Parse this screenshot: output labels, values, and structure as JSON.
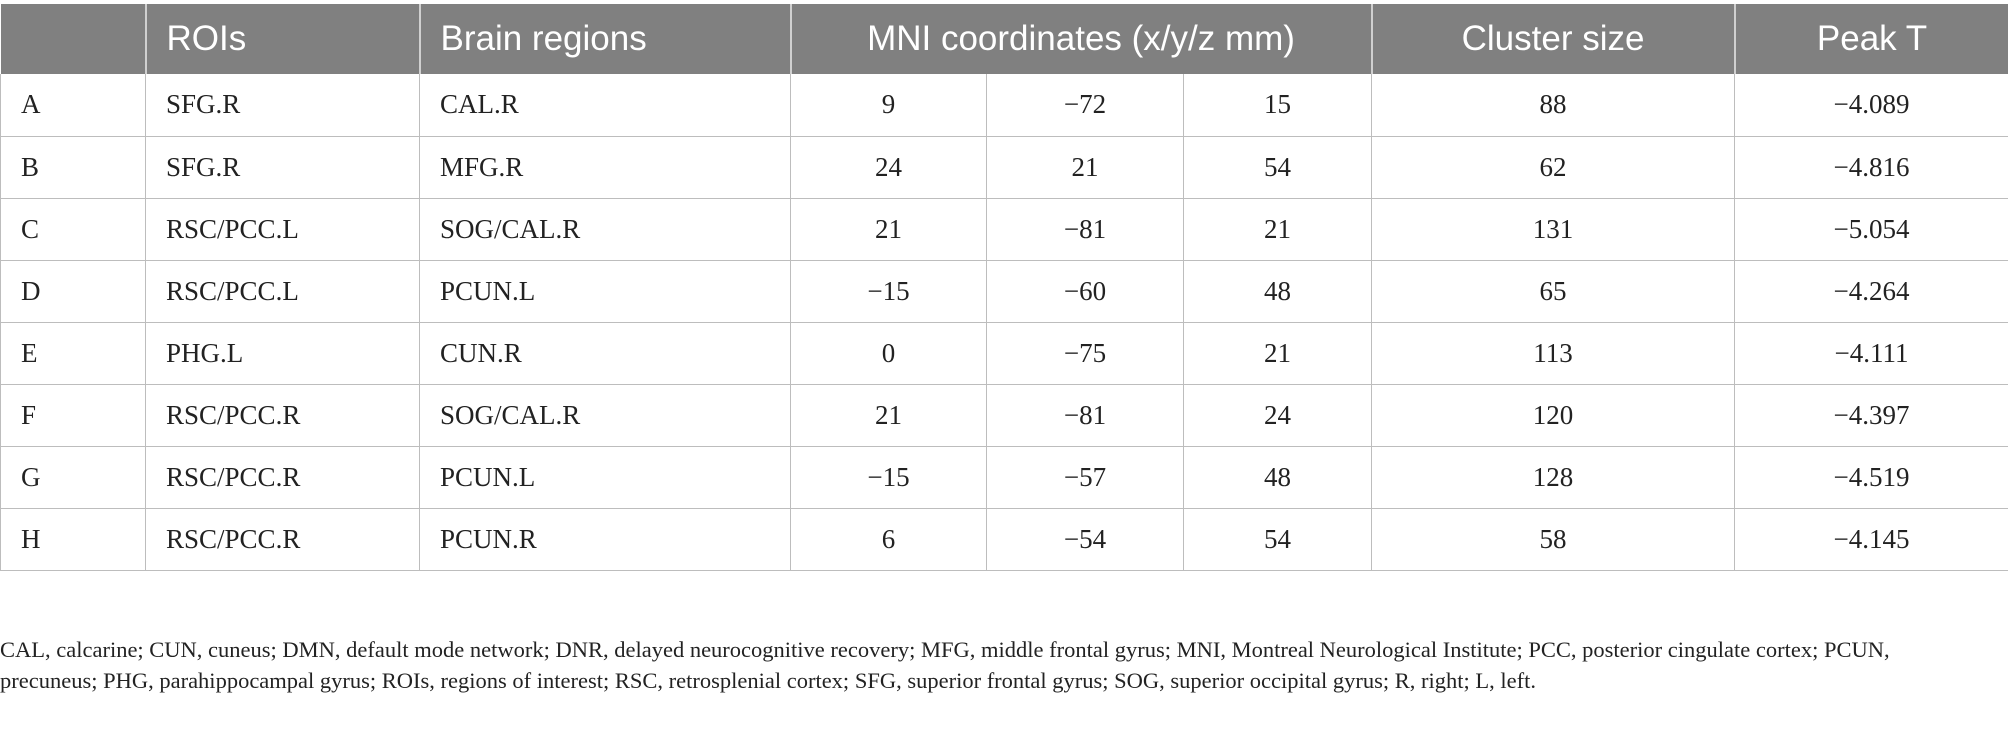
{
  "table": {
    "headers": {
      "label": "",
      "rois": "ROIs",
      "brain_regions": "Brain regions",
      "mni": "MNI coordinates (x/y/z mm)",
      "cluster_size": "Cluster size",
      "peak_t": "Peak T"
    },
    "rows": [
      {
        "label": "A",
        "roi": "SFG.R",
        "region": "CAL.R",
        "x": "9",
        "y": "−72",
        "z": "15",
        "size": "88",
        "peak": "−4.089"
      },
      {
        "label": "B",
        "roi": "SFG.R",
        "region": "MFG.R",
        "x": "24",
        "y": "21",
        "z": "54",
        "size": "62",
        "peak": "−4.816"
      },
      {
        "label": "C",
        "roi": "RSC/PCC.L",
        "region": "SOG/CAL.R",
        "x": "21",
        "y": "−81",
        "z": "21",
        "size": "131",
        "peak": "−5.054"
      },
      {
        "label": "D",
        "roi": "RSC/PCC.L",
        "region": "PCUN.L",
        "x": "−15",
        "y": "−60",
        "z": "48",
        "size": "65",
        "peak": "−4.264"
      },
      {
        "label": "E",
        "roi": "PHG.L",
        "region": "CUN.R",
        "x": "0",
        "y": "−75",
        "z": "21",
        "size": "113",
        "peak": "−4.111"
      },
      {
        "label": "F",
        "roi": "RSC/PCC.R",
        "region": "SOG/CAL.R",
        "x": "21",
        "y": "−81",
        "z": "24",
        "size": "120",
        "peak": "−4.397"
      },
      {
        "label": "G",
        "roi": "RSC/PCC.R",
        "region": "PCUN.L",
        "x": "−15",
        "y": "−57",
        "z": "48",
        "size": "128",
        "peak": "−4.519"
      },
      {
        "label": "H",
        "roi": "RSC/PCC.R",
        "region": "PCUN.R",
        "x": "6",
        "y": "−54",
        "z": "54",
        "size": "58",
        "peak": "−4.145"
      }
    ]
  },
  "footnote": "CAL, calcarine; CUN, cuneus; DMN, default mode network; DNR, delayed neurocognitive recovery; MFG, middle frontal gyrus; MNI, Montreal Neurological Institute; PCC, posterior cingulate cortex; PCUN, precuneus; PHG, parahippocampal gyrus; ROIs, regions of interest; RSC, retrosplenial cortex; SFG, superior frontal gyrus; SOG, superior occipital gyrus; R, right; L, left.",
  "colors": {
    "header_bg": "#808080",
    "header_text": "#ffffff",
    "grid": "#bdbdbd",
    "body_text": "#222222"
  }
}
